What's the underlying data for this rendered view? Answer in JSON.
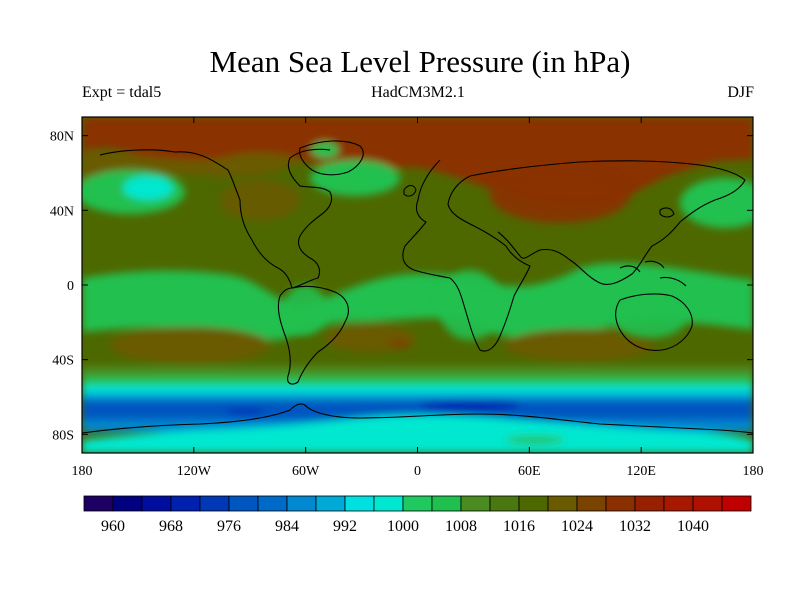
{
  "title": "Mean Sea Level Pressure (in hPa)",
  "subtitle_left": "Expt = tdal5",
  "subtitle_center": "HadCM3M2.1",
  "subtitle_right": "DJF",
  "map": {
    "type": "filled-contour-map",
    "variable": "Mean Sea Level Pressure",
    "units": "hPa",
    "lon_range": [
      -180,
      180
    ],
    "lat_range": [
      -90,
      90
    ],
    "y_ticks": [
      {
        "lat": 80,
        "label": "80N"
      },
      {
        "lat": 40,
        "label": "40N"
      },
      {
        "lat": 0,
        "label": "0"
      },
      {
        "lat": -40,
        "label": "40S"
      },
      {
        "lat": -80,
        "label": "80S"
      }
    ],
    "x_ticks": [
      {
        "lon": -180,
        "label": "180"
      },
      {
        "lon": -120,
        "label": "120W"
      },
      {
        "lon": -60,
        "label": "60W"
      },
      {
        "lon": 0,
        "label": "0"
      },
      {
        "lon": 60,
        "label": "60E"
      },
      {
        "lon": 120,
        "label": "120E"
      },
      {
        "lon": 180,
        "label": "180"
      }
    ]
  },
  "colorbar": {
    "colors": [
      "#1e0064",
      "#000080",
      "#000ea0",
      "#0020b0",
      "#0038b8",
      "#0056c0",
      "#006ac8",
      "#0088d0",
      "#00aad8",
      "#00e0e0",
      "#00e8d0",
      "#20c860",
      "#20c050",
      "#4a8c20",
      "#4a7810",
      "#4e6800",
      "#6a5a00",
      "#7a4400",
      "#8a3000",
      "#962000",
      "#a81800",
      "#b01000",
      "#c00000"
    ],
    "label_values": [
      960,
      968,
      976,
      984,
      992,
      1000,
      1008,
      1016,
      1024,
      1032,
      1040
    ],
    "labels": [
      "960",
      "968",
      "976",
      "984",
      "992",
      "1000",
      "1008",
      "1016",
      "1024",
      "1032",
      "1040"
    ]
  },
  "colors": {
    "high": "#8a3000",
    "mid": "#4e6800",
    "low_mid": "#20c050",
    "cyan": "#00e8d0",
    "blue": "#0056c0"
  }
}
